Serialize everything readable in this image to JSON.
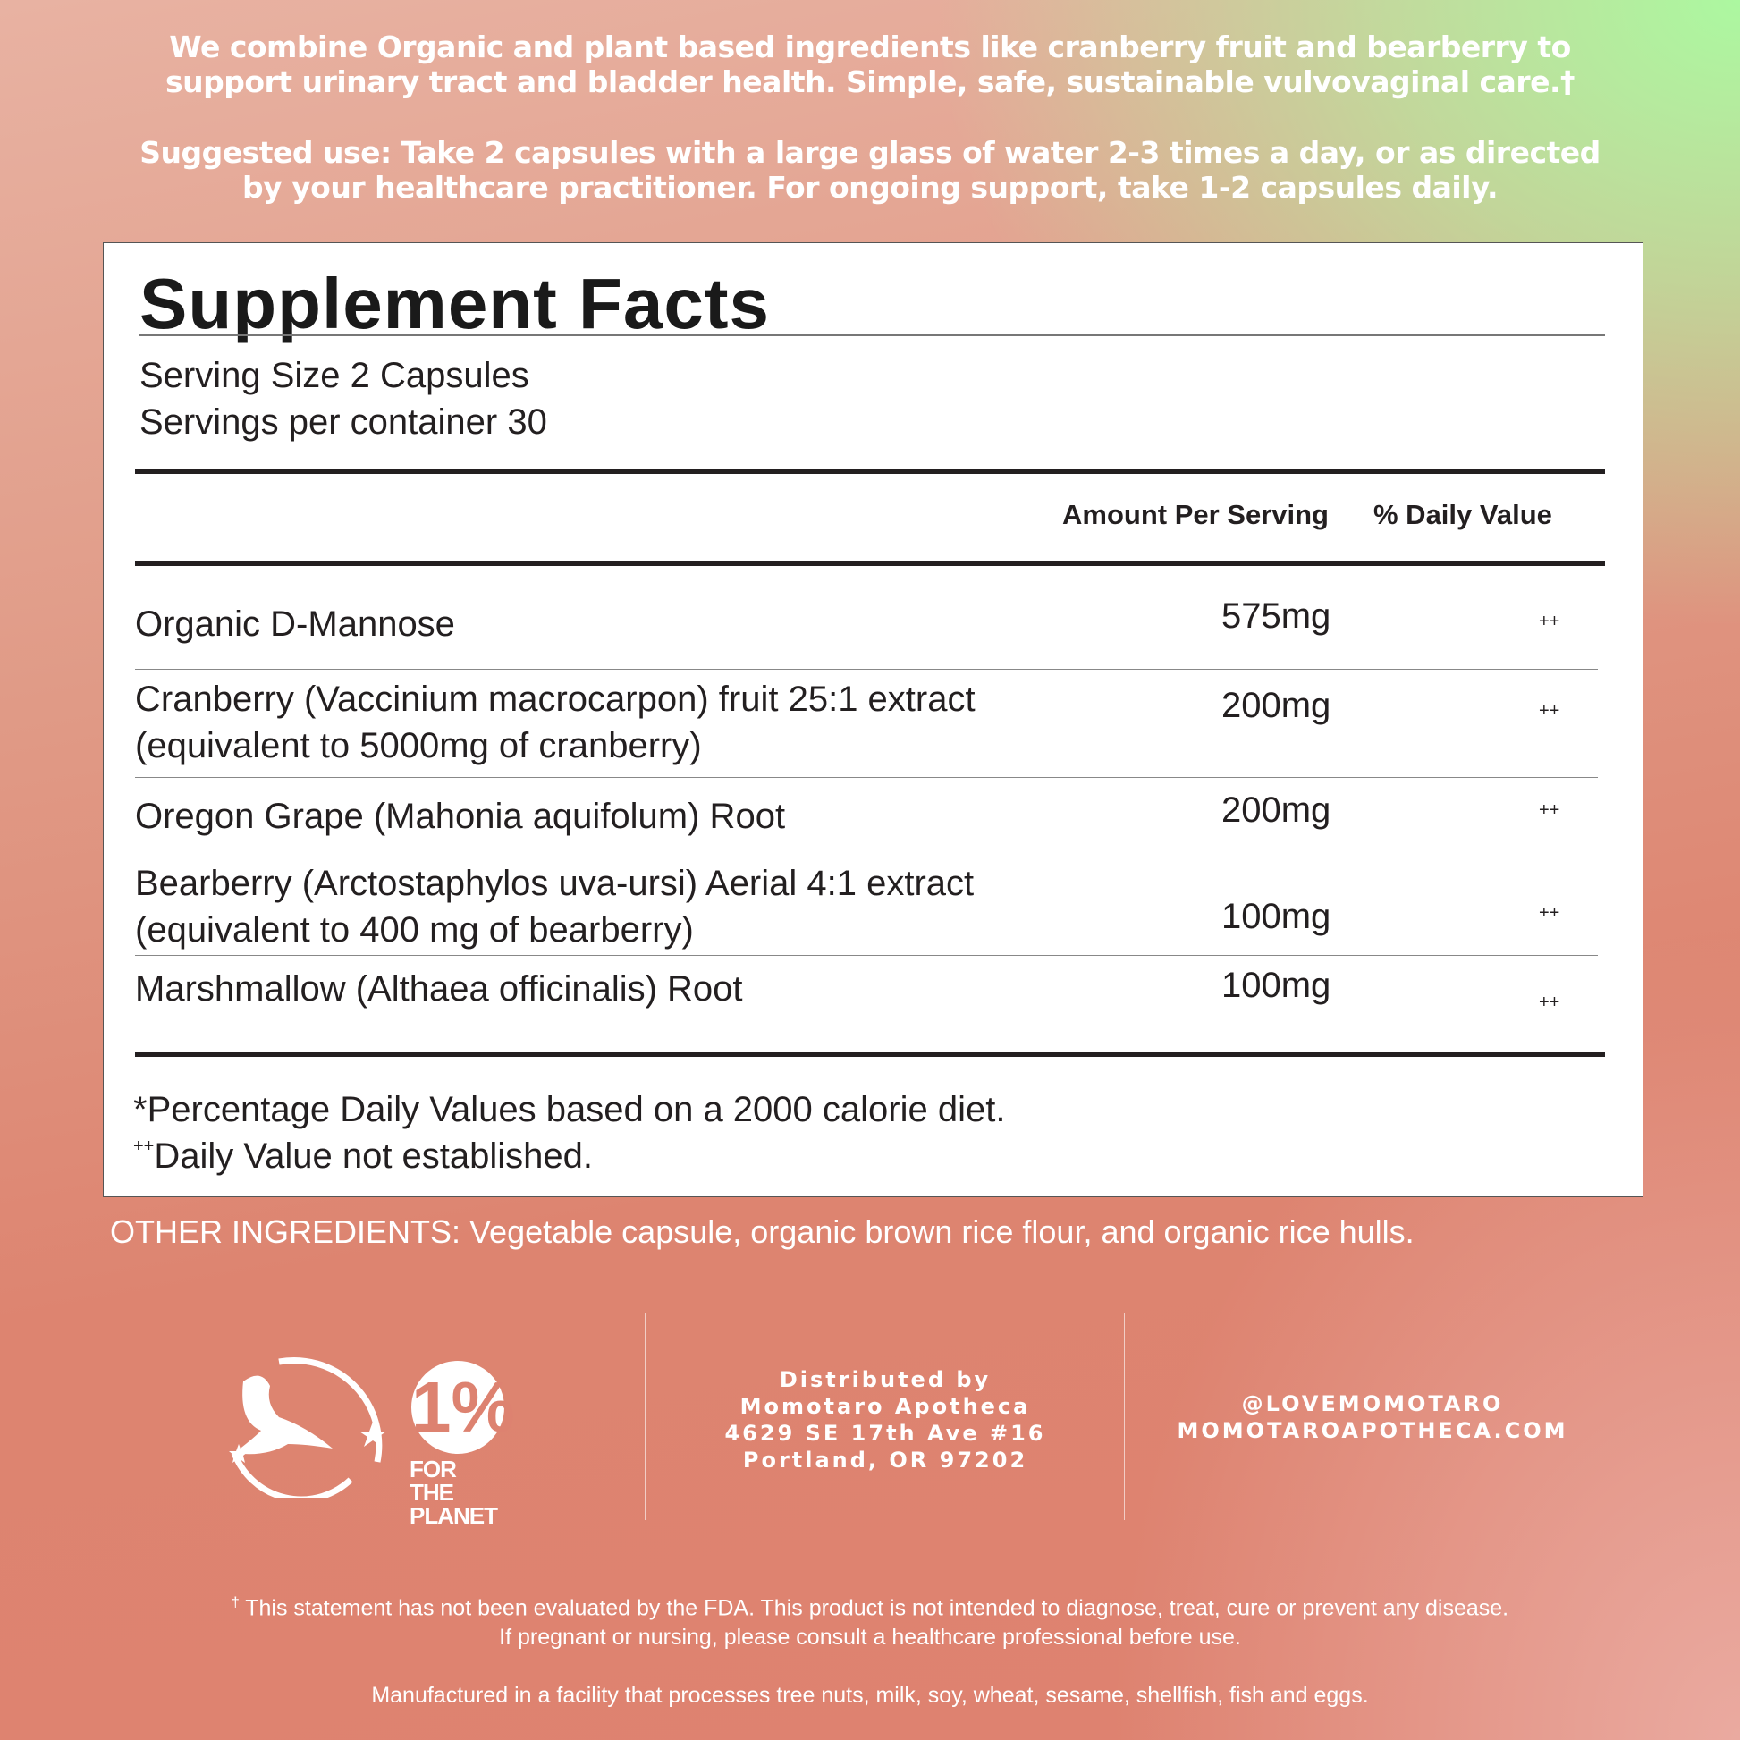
{
  "intro": {
    "line1": "We combine Organic and plant based ingredients like cranberry fruit and bearberry to",
    "line2": "support urinary tract and bladder health. Simple, safe, sustainable vulvovaginal care.†"
  },
  "usage": {
    "line1": "Suggested use: Take 2 capsules with a large glass of water 2-3 times a day, or as directed",
    "line2": "by your healthcare practitioner. For ongoing support, take 1-2 capsules daily."
  },
  "facts": {
    "title": "Supplement Facts",
    "serving_size": "Serving Size 2 Capsules",
    "servings_per_container": "Servings per container 30",
    "header_amount": "Amount Per Serving",
    "header_dv": "% Daily Value",
    "rows": [
      {
        "name1": "Organic D-Mannose",
        "name2": "",
        "amount": "575mg",
        "dv": "++"
      },
      {
        "name1": "Cranberry (Vaccinium macrocarpon) fruit 25:1 extract",
        "name2": "(equivalent to 5000mg of cranberry)",
        "amount": "200mg",
        "dv": "++"
      },
      {
        "name1": "Oregon Grape (Mahonia aquifolum) Root",
        "name2": "",
        "amount": "200mg",
        "dv": "++"
      },
      {
        "name1": "Bearberry (Arctostaphylos uva-ursi) Aerial 4:1 extract",
        "name2": "(equivalent to 400 mg of bearberry)",
        "amount": "100mg",
        "dv": "++"
      },
      {
        "name1": "Marshmallow (Althaea officinalis) Root",
        "name2": "",
        "amount": "100mg",
        "dv": "++"
      }
    ],
    "footnote1": "*Percentage Daily Values based on a 2000 calorie diet.",
    "footnote2_mark": "++",
    "footnote2": "Daily Value not established."
  },
  "other_ingredients": "OTHER INGREDIENTS: Vegetable capsule, organic brown rice flour, and organic rice hulls.",
  "logos": {
    "bunny": "leaping-bunny-logo",
    "one_percent": "1%",
    "one_percent_text1": "FOR THE",
    "one_percent_text2": "PLANET"
  },
  "distributor": {
    "line1": "Distributed by",
    "line2": "Momotaro Apotheca",
    "line3": "4629 SE 17th Ave #16",
    "line4": "Portland, OR 97202"
  },
  "social": {
    "handle": "@LOVEMOMOTARO",
    "website": "MOMOTAROAPOTHECA.COM"
  },
  "legal": {
    "mark": "†",
    "line1": "This statement has not been evaluated by the FDA. This product is not intended to diagnose, treat, cure or prevent any disease.",
    "line2": "If pregnant or nursing, please consult a healthcare professional before use.",
    "line3": "Manufactured in a facility that processes tree nuts, milk, soy, wheat, sesame, shellfish, fish and eggs."
  }
}
